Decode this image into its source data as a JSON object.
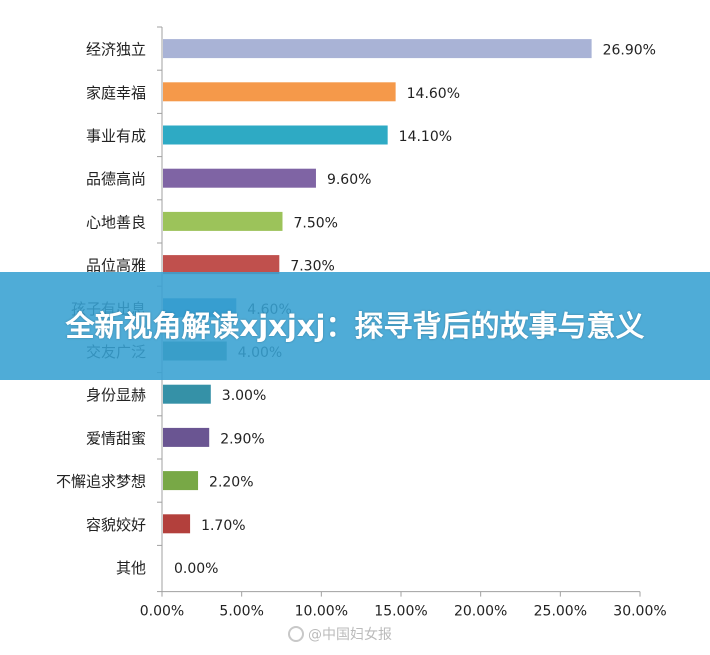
{
  "banner": {
    "title": "全新视角解读xjxjxj：探寻背后的故事与意义"
  },
  "watermark": {
    "text": "@中国妇女报",
    "icon": "weibo-icon"
  },
  "chart_data": {
    "type": "bar",
    "orientation": "horizontal",
    "categories": [
      "经济独立",
      "家庭幸福",
      "事业有成",
      "品德高尚",
      "心地善良",
      "品位高雅",
      "孩子有出息",
      "交友广泛",
      "身份显赫",
      "爱情甜蜜",
      "不懈追求梦想",
      "容貌姣好",
      "其他"
    ],
    "values": [
      26.9,
      14.6,
      14.1,
      9.6,
      7.5,
      7.3,
      4.6,
      4.0,
      3.0,
      2.9,
      2.2,
      1.7,
      0.0
    ],
    "value_labels": [
      "26.90%",
      "14.60%",
      "14.10%",
      "9.60%",
      "7.50%",
      "7.30%",
      "4.60%",
      "4.00%",
      "3.00%",
      "2.90%",
      "2.20%",
      "1.70%",
      "0.00%"
    ],
    "colors": [
      "#a9b3d6",
      "#f5994a",
      "#2eaac4",
      "#7f64a4",
      "#9cc35a",
      "#c0504d",
      "#3b8ac4",
      "#4a8c8e",
      "#3591a7",
      "#6a5592",
      "#78a846",
      "#b3403c",
      "#6f6f6f"
    ],
    "xlim": [
      0,
      30
    ],
    "xticks": [
      "0.00%",
      "5.00%",
      "10.00%",
      "15.00%",
      "20.00%",
      "25.00%",
      "30.00%"
    ],
    "grid": false,
    "legend": "none"
  }
}
